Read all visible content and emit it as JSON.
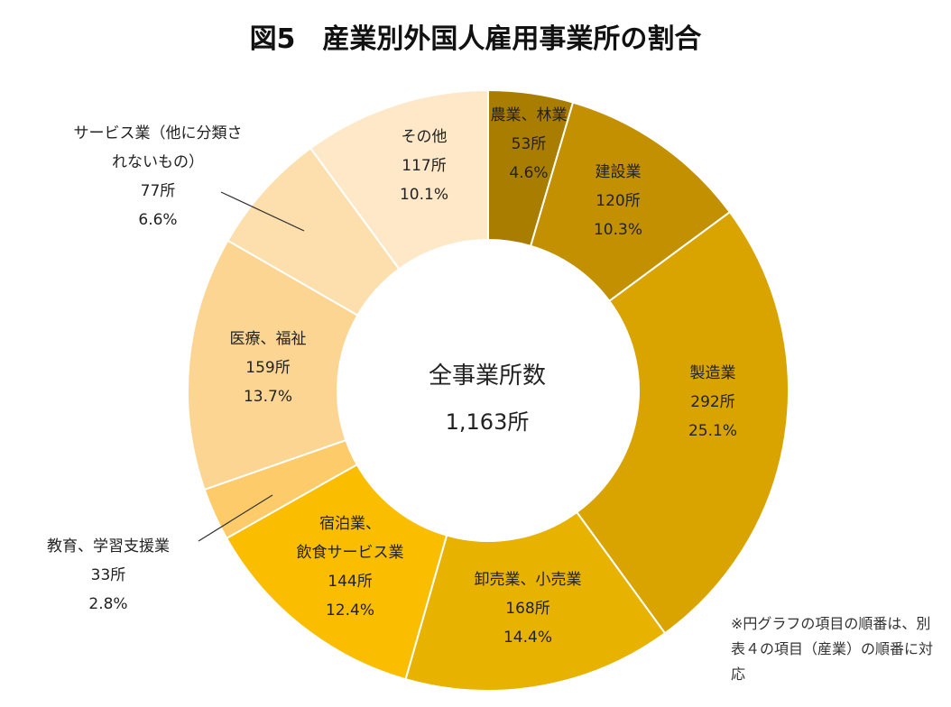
{
  "title": "図5　産業別外国人雇用事業所の割合",
  "center": {
    "title": "全事業所数",
    "total": "1,163所"
  },
  "note": "※円グラフの項目の順番は、別表４の項目（産業）の順番に対応",
  "chart_data": {
    "type": "pie",
    "donut": true,
    "start_angle_deg": 0,
    "direction": "clockwise",
    "total": 1163,
    "slices": [
      {
        "name": "農業、林業",
        "lines": [
          "農業、林業"
        ],
        "count": 53,
        "count_label": "53所",
        "percent": 4.6,
        "percent_label": "4.6%",
        "color": "#A97D00"
      },
      {
        "name": "建設業",
        "lines": [
          "建設業"
        ],
        "count": 120,
        "count_label": "120所",
        "percent": 10.3,
        "percent_label": "10.3%",
        "color": "#C29000"
      },
      {
        "name": "製造業",
        "lines": [
          "製造業"
        ],
        "count": 292,
        "count_label": "292所",
        "percent": 25.1,
        "percent_label": "25.1%",
        "color": "#D9A400"
      },
      {
        "name": "卸売業、小売業",
        "lines": [
          "卸売業、小売業"
        ],
        "count": 168,
        "count_label": "168所",
        "percent": 14.4,
        "percent_label": "14.4%",
        "color": "#E8B200"
      },
      {
        "name": "宿泊業、飲食サービス業",
        "lines": [
          "宿泊業、",
          "飲食サービス業"
        ],
        "count": 144,
        "count_label": "144所",
        "percent": 12.4,
        "percent_label": "12.4%",
        "color": "#FABD00"
      },
      {
        "name": "教育、学習支援業",
        "lines": [
          "教育、学習支援業"
        ],
        "count": 33,
        "count_label": "33所",
        "percent": 2.8,
        "percent_label": "2.8%",
        "color": "#FDCB6A"
      },
      {
        "name": "医療、福祉",
        "lines": [
          "医療、福祉"
        ],
        "count": 159,
        "count_label": "159所",
        "percent": 13.7,
        "percent_label": "13.7%",
        "color": "#FDD592"
      },
      {
        "name": "サービス業（他に分類されないもの）",
        "lines": [
          "サービス業（他に分類さ",
          "れないもの）"
        ],
        "count": 77,
        "count_label": "77所",
        "percent": 6.6,
        "percent_label": "6.6%",
        "color": "#FDDFAD"
      },
      {
        "name": "その他",
        "lines": [
          "その他"
        ],
        "count": 117,
        "count_label": "117所",
        "percent": 10.1,
        "percent_label": "10.1%",
        "color": "#FEE8C8"
      }
    ]
  }
}
